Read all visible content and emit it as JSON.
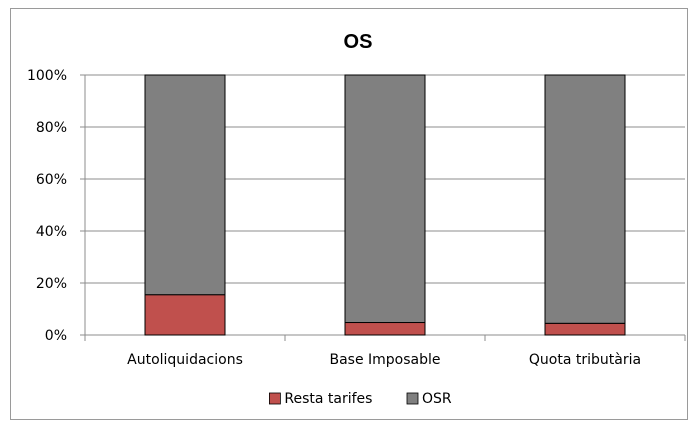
{
  "chart_data": {
    "type": "bar",
    "stacked": true,
    "percent": true,
    "title": "OS",
    "categories": [
      "Autoliquidacions",
      "Base Imposable",
      "Quota tributària"
    ],
    "series": [
      {
        "name": "Resta tarifes",
        "color": "#c0504d",
        "values": [
          15.5,
          4.8,
          4.5
        ]
      },
      {
        "name": "OSR",
        "color": "#808080",
        "values": [
          84.5,
          95.2,
          95.5
        ]
      }
    ],
    "yticks": [
      "0%",
      "20%",
      "40%",
      "60%",
      "80%",
      "100%"
    ],
    "ylim": [
      0,
      100
    ],
    "grid": true,
    "legend": "bottom"
  }
}
